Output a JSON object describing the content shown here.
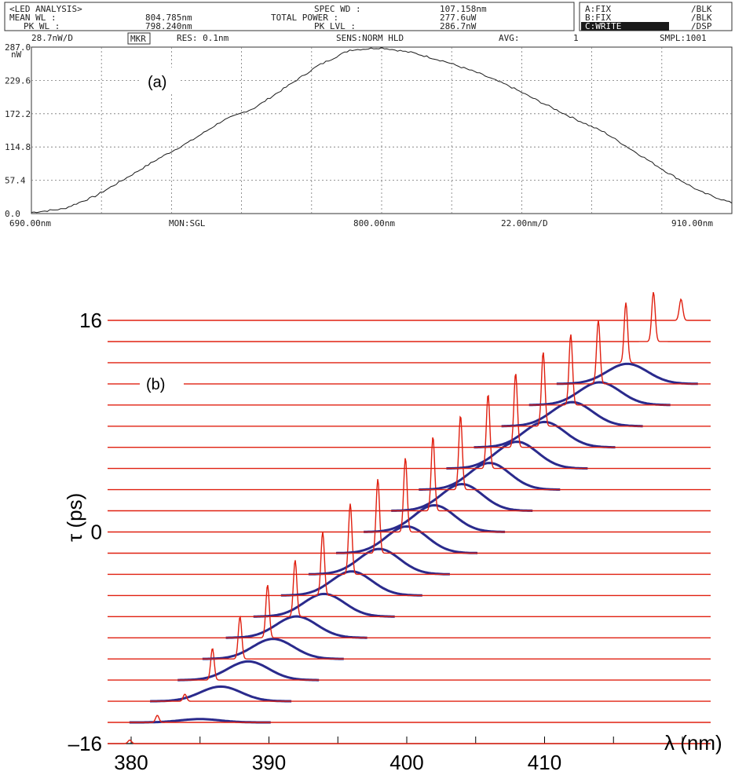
{
  "panel_a": {
    "label": "(a)",
    "header": {
      "row1": {
        "mode": "<LED ANALYSIS>",
        "spec_wd": "SPEC WD :",
        "spec_wd_val": "107.158nm",
        "trace_a": "A:FIX",
        "trace_a_mode": "/BLK"
      },
      "row2": {
        "mean_wl": "MEAN WL :",
        "mean_wl_val": "804.785nm",
        "total_power": "TOTAL POWER :",
        "total_power_val": "277.6uW",
        "trace_b": "B:FIX",
        "trace_b_mode": "/BLK"
      },
      "row3": {
        "pk_wl": "PK WL :",
        "pk_wl_val": "798.240nm",
        "pk_lvl": "PK LVL :",
        "pk_lvl_val": "286.7nW",
        "trace_c": "C:WRITE",
        "trace_c_mode": "/DSP"
      },
      "row4": {
        "scale": "28.7nW/D",
        "mkr": "MKR",
        "res": "RES: 0.1nm",
        "sens": "SENS:NORM HLD",
        "avg": "AVG:",
        "avg_val": "1",
        "smpl": "SMPL:1001"
      }
    },
    "footer": {
      "start": "690.00nm",
      "mon": "MON:SGL",
      "center": "800.00nm",
      "span_div": "22.00nm/D",
      "stop": "910.00nm"
    },
    "colors": {
      "trace": "#1a1a1a",
      "grid": "#777777",
      "frame": "#333333"
    }
  },
  "panel_b": {
    "label": "(b)",
    "colors": {
      "red": "#e02010",
      "blue": "#2a2a8c"
    }
  },
  "chart_data": [
    {
      "type": "line",
      "title": "",
      "xlabel": "",
      "ylabel": "nW",
      "xlim": [
        690,
        910
      ],
      "ylim": [
        0,
        287
      ],
      "y_ticks": [
        "287.0",
        "229.6",
        "172.2",
        "114.8",
        "57.4",
        "0.0"
      ],
      "y_tick_values": [
        287,
        229.6,
        172.2,
        114.8,
        57.4,
        0
      ],
      "grid": true,
      "series": [
        {
          "x": [
            690,
            700,
            710,
            720,
            730,
            740,
            750,
            760,
            770,
            780,
            790,
            800,
            810,
            820,
            830,
            840,
            850,
            860,
            870,
            880,
            890,
            900,
            910
          ],
          "y": [
            2,
            8,
            30,
            62,
            95,
            125,
            160,
            182,
            218,
            255,
            282,
            286,
            277,
            262,
            243,
            220,
            192,
            165,
            140,
            105,
            70,
            38,
            18
          ]
        }
      ]
    },
    {
      "type": "line",
      "title": "",
      "xlabel": "λ (nm)",
      "ylabel": "τ (ps)",
      "xlim": [
        377,
        408
      ],
      "x_ticks": [
        380,
        390,
        400,
        410
      ],
      "y_ticks": [
        "16",
        "0",
        "–16"
      ],
      "y_tick_values": [
        16,
        0,
        -16
      ],
      "ylim": [
        -16,
        16
      ],
      "trace_offsets_ps": [
        -16,
        -14.4,
        -12.8,
        -11.2,
        -9.6,
        -8,
        -6.4,
        -4.8,
        -3.2,
        -1.6,
        0,
        1.6,
        3.2,
        4.8,
        6.4,
        8,
        9.6,
        11.2,
        12.8,
        14.4,
        16
      ],
      "grid": false,
      "series": [
        {
          "name": "",
          "color": "red",
          "peak_wavelength_nm": [
            379.9,
            381.9,
            383.9,
            385.9,
            387.9,
            389.9,
            391.9,
            393.9,
            395.9,
            397.9,
            399.9,
            401.9,
            403.9,
            405.9,
            407.9,
            409.9,
            411.9,
            413.9,
            415.9,
            417.9,
            419.9
          ],
          "peak_height_rel": [
            0.05,
            0.1,
            0.1,
            0.45,
            0.6,
            0.75,
            0.8,
            0.9,
            1.0,
            1.05,
            1.05,
            1.05,
            1.05,
            1.05,
            1.05,
            1.05,
            1.0,
            0.9,
            0.85,
            0.7,
            0.3
          ]
        },
        {
          "name": "",
          "color": "blue",
          "peak_wavelength_nm": [
            null,
            385.0,
            386.5,
            388.5,
            390.3,
            392.0,
            394.0,
            396.0,
            398.0,
            400.0,
            402.0,
            404.0,
            406.0,
            408.0,
            410.0,
            412.0,
            414.0,
            416.0,
            null,
            null,
            null
          ],
          "peak_height_rel": [
            null,
            0.05,
            0.22,
            0.28,
            0.3,
            0.32,
            0.34,
            0.36,
            0.38,
            0.4,
            0.4,
            0.4,
            0.4,
            0.4,
            0.38,
            0.36,
            0.34,
            0.3,
            null,
            null,
            null
          ]
        }
      ]
    }
  ]
}
